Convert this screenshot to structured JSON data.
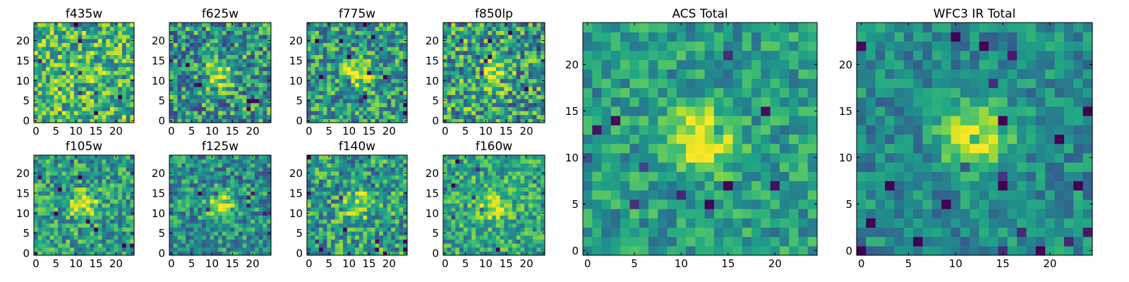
{
  "figure": {
    "colormap": "viridis",
    "pixel_grid": "25x25",
    "axis_frame_color": "#000000"
  },
  "chart_data": [
    {
      "type": "heatmap",
      "title": "f435w",
      "xticks": [
        "0",
        "5",
        "10",
        "15",
        "20"
      ],
      "yticks": [
        "0",
        "5",
        "10",
        "15",
        "20"
      ],
      "xlim": [
        0,
        24
      ],
      "ylim": [
        0,
        24
      ],
      "source_position": [
        12,
        12
      ],
      "source_strength": 0.05,
      "noise_level": 0.32,
      "background_level": 0.66
    },
    {
      "type": "heatmap",
      "title": "f625w",
      "xticks": [
        "0",
        "5",
        "10",
        "15",
        "20"
      ],
      "yticks": [
        "0",
        "5",
        "10",
        "15",
        "20"
      ],
      "xlim": [
        0,
        24
      ],
      "ylim": [
        0,
        24
      ],
      "source_position": [
        12,
        12
      ],
      "source_strength": 0.45,
      "noise_level": 0.34,
      "background_level": 0.52
    },
    {
      "type": "heatmap",
      "title": "f775w",
      "xticks": [
        "0",
        "5",
        "10",
        "15",
        "20"
      ],
      "yticks": [
        "0",
        "5",
        "10",
        "15",
        "20"
      ],
      "xlim": [
        0,
        24
      ],
      "ylim": [
        0,
        24
      ],
      "source_position": [
        12,
        12
      ],
      "source_strength": 0.45,
      "noise_level": 0.3,
      "background_level": 0.55
    },
    {
      "type": "heatmap",
      "title": "f850lp",
      "xticks": [
        "0",
        "5",
        "10",
        "15",
        "20"
      ],
      "yticks": [
        "0",
        "5",
        "10",
        "15",
        "20"
      ],
      "xlim": [
        0,
        24
      ],
      "ylim": [
        0,
        24
      ],
      "source_position": [
        12,
        12
      ],
      "source_strength": 0.3,
      "noise_level": 0.36,
      "background_level": 0.56
    },
    {
      "type": "heatmap",
      "title": "f105w",
      "xticks": [
        "0",
        "5",
        "10",
        "15",
        "20"
      ],
      "yticks": [
        "0",
        "5",
        "10",
        "15",
        "20"
      ],
      "xlim": [
        0,
        24
      ],
      "ylim": [
        0,
        24
      ],
      "source_position": [
        12,
        12
      ],
      "source_strength": 0.4,
      "noise_level": 0.28,
      "background_level": 0.55
    },
    {
      "type": "heatmap",
      "title": "f125w",
      "xticks": [
        "0",
        "5",
        "10",
        "15",
        "20"
      ],
      "yticks": [
        "0",
        "5",
        "10",
        "15",
        "20"
      ],
      "xlim": [
        0,
        24
      ],
      "ylim": [
        0,
        24
      ],
      "source_position": [
        12,
        12
      ],
      "source_strength": 0.42,
      "noise_level": 0.26,
      "background_level": 0.5
    },
    {
      "type": "heatmap",
      "title": "f140w",
      "xticks": [
        "0",
        "5",
        "10",
        "15",
        "20"
      ],
      "yticks": [
        "0",
        "5",
        "10",
        "15",
        "20"
      ],
      "xlim": [
        0,
        24
      ],
      "ylim": [
        0,
        24
      ],
      "source_position": [
        12,
        12
      ],
      "source_strength": 0.35,
      "noise_level": 0.3,
      "background_level": 0.56
    },
    {
      "type": "heatmap",
      "title": "f160w",
      "xticks": [
        "0",
        "5",
        "10",
        "15",
        "20"
      ],
      "yticks": [
        "0",
        "5",
        "10",
        "15",
        "20"
      ],
      "xlim": [
        0,
        24
      ],
      "ylim": [
        0,
        24
      ],
      "source_position": [
        12,
        12
      ],
      "source_strength": 0.4,
      "noise_level": 0.24,
      "background_level": 0.6
    },
    {
      "type": "heatmap",
      "title": "ACS Total",
      "xticks": [
        "0",
        "5",
        "10",
        "15",
        "20"
      ],
      "yticks": [
        "0",
        "5",
        "10",
        "15",
        "20"
      ],
      "xlim": [
        0,
        24
      ],
      "ylim": [
        0,
        24
      ],
      "source_position": [
        12,
        12
      ],
      "source_strength": 0.5,
      "noise_level": 0.2,
      "background_level": 0.55
    },
    {
      "type": "heatmap",
      "title": "WFC3 IR Total",
      "xticks": [
        "0",
        "5",
        "10",
        "15",
        "20"
      ],
      "yticks": [
        "0",
        "5",
        "10",
        "15",
        "20"
      ],
      "xlim": [
        0,
        24
      ],
      "ylim": [
        0,
        24
      ],
      "source_position": [
        12,
        12
      ],
      "source_strength": 0.55,
      "noise_level": 0.18,
      "background_level": 0.48
    }
  ]
}
